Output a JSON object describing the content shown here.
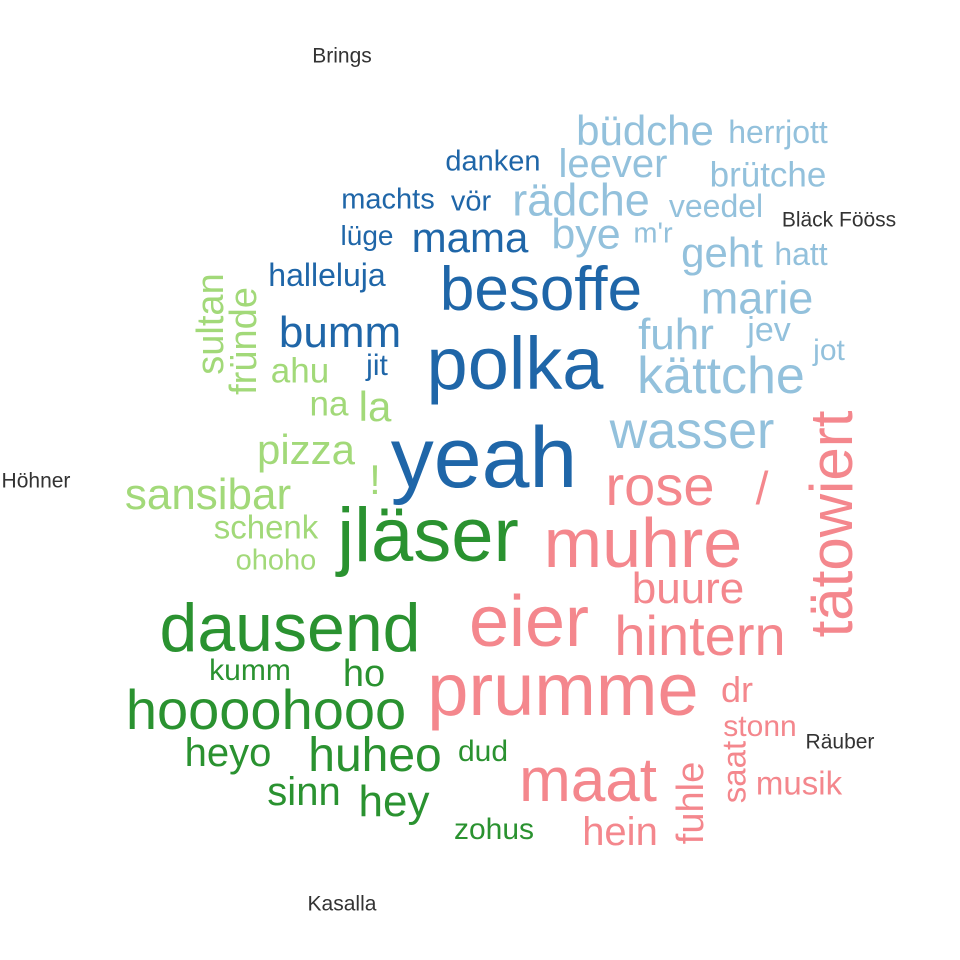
{
  "colors": {
    "dark_blue": "#1f66a8",
    "light_blue": "#93c1dc",
    "light_green": "#a2d979",
    "dark_green": "#2a9230",
    "pink": "#f4878d",
    "label": "#333333"
  },
  "bands": {
    "brings": "Brings",
    "blaeck_foeoess": "Bläck Fööss",
    "hoehner": "Höhner",
    "raeuber": "Räuber",
    "kasalla": "Kasalla"
  },
  "words": {
    "yeah": "yeah",
    "polka": "polka",
    "besoffe": "besoffe",
    "bumm": "bumm",
    "mama": "mama",
    "halleluja": "halleluja",
    "machts": "machts",
    "voer": "vör",
    "danken": "danken",
    "luege": "lüge",
    "jit": "jit",
    "buedche": "büdche",
    "herrjott": "herrjott",
    "leever": "leever",
    "bruetche": "brütche",
    "raedche": "rädche",
    "veedel": "veedel",
    "bye": "bye",
    "mr": "m'r",
    "geht": "geht",
    "hatt": "hatt",
    "marie": "marie",
    "fuhr": "fuhr",
    "jev": "jev",
    "jot": "jot",
    "kaettche": "kättche",
    "wasser": "wasser",
    "sultan": "sultan",
    "fruende": "fründe",
    "ahu": "ahu",
    "na": "na",
    "la": "la",
    "pizza": "pizza",
    "excl": "!",
    "sansibar": "sansibar",
    "schenk": "schenk",
    "ohoho": "ohoho",
    "jlaeser": "jläser",
    "dausend": "dausend",
    "kumm": "kumm",
    "ho": "ho",
    "hooooho": "hoooohooo",
    "heyo": "heyo",
    "huheo": "huheo",
    "dud": "dud",
    "sinn": "sinn",
    "hey": "hey",
    "zohus": "zohus",
    "rose": "rose",
    "slash": "/",
    "taetowiert": "tätowiert",
    "muhre": "muhre",
    "buure": "buure",
    "eier": "eier",
    "hintern": "hintern",
    "prumme": "prumme",
    "dr": "dr",
    "stonn": "stonn",
    "saat": "saat",
    "musik": "musik",
    "maat": "maat",
    "fuhle": "fuhle",
    "hein": "hein"
  }
}
